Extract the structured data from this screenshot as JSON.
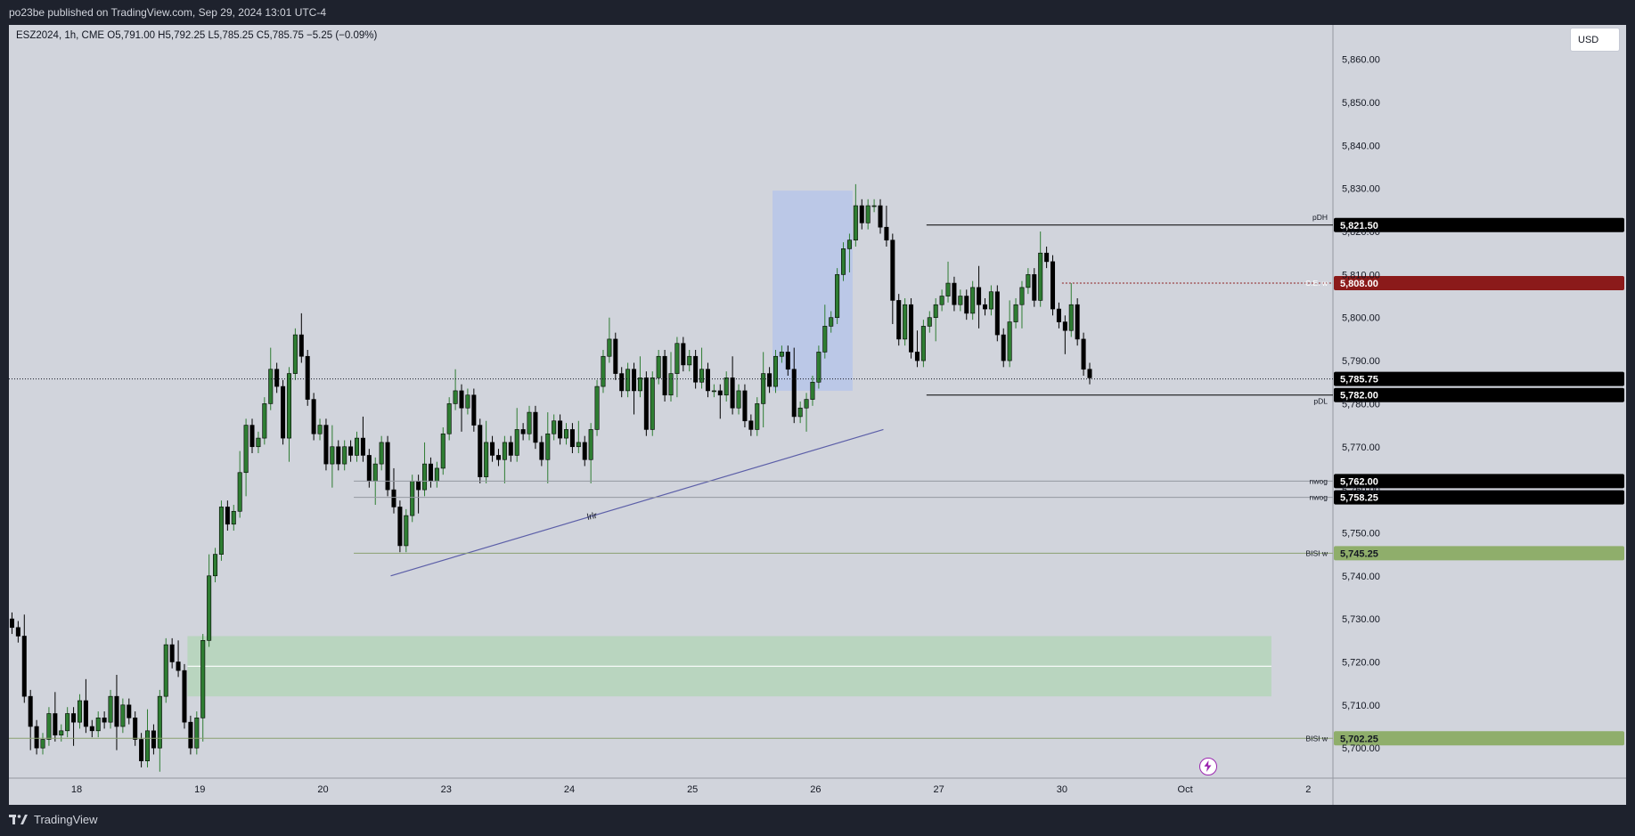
{
  "header": {
    "published_text": "po23be published on TradingView.com, Sep 29, 2024 13:01 UTC-4"
  },
  "legend": {
    "symbol_line": "ESZ2024, 1h, CME  O5,791.00  H5,792.25  L5,785.25  C5,785.75  −5.25 (−0.09%)"
  },
  "currency_button": "USD",
  "footer": {
    "brand": "TradingView"
  },
  "colors": {
    "background": "#d1d4dc",
    "up_body": "#2e7d32",
    "down_body": "#000000",
    "wick": "#2e7d32",
    "zone_blue": "#aabdf0",
    "zone_green": "#a5d6a7",
    "trendline": "#5c5fa8",
    "ce_marker": "#8b1a1a",
    "bisi_tag": "#8fae6b"
  },
  "chart_data": {
    "type": "candlestick",
    "symbol": "ESZ2024",
    "interval": "1h",
    "exchange": "CME",
    "ohlc": {
      "open": 5791.0,
      "high": 5792.25,
      "low": 5785.25,
      "close": 5785.75,
      "change": -5.25,
      "change_pct": -0.09
    },
    "y_axis": {
      "ylim": [
        5693,
        5868
      ],
      "ticks": [
        5700,
        5710,
        5720,
        5730,
        5740,
        5750,
        5760,
        5770,
        5780,
        5790,
        5800,
        5810,
        5820,
        5830,
        5840,
        5850,
        5860
      ],
      "tick_labels": [
        "5,700.00",
        "5,710.00",
        "5,720.00",
        "5,730.00",
        "5,740.00",
        "5,750.00",
        "5,760.00",
        "5,770.00",
        "5,780.00",
        "5,790.00",
        "5,800.00",
        "5,810.00",
        "5,820.00",
        "5,830.00",
        "5,840.00",
        "5,850.00",
        "5,860.00"
      ]
    },
    "x_axis": {
      "xlim": [
        0,
        215
      ],
      "tick_labels": [
        "18",
        "19",
        "20",
        "23",
        "24",
        "25",
        "26",
        "27",
        "30",
        "Oct",
        "2"
      ],
      "tick_positions": [
        11,
        31,
        51,
        71,
        91,
        111,
        131,
        151,
        171,
        191,
        211
      ]
    },
    "candles_close": [
      5728,
      5726,
      5712,
      5705,
      5700,
      5702,
      5708,
      5703,
      5704,
      5708,
      5706,
      5711,
      5705,
      5704,
      5707,
      5706,
      5712,
      5705,
      5710,
      5707,
      5702,
      5697,
      5704,
      5700,
      5712,
      5724,
      5720,
      5718,
      5706,
      5700,
      5707,
      5725,
      5740,
      5745,
      5756,
      5752,
      5755,
      5764,
      5775,
      5770,
      5772,
      5780,
      5788,
      5784,
      5772,
      5787,
      5796,
      5791,
      5781,
      5773,
      5775,
      5766,
      5770,
      5766,
      5770,
      5768,
      5772,
      5768,
      5762,
      5766,
      5771,
      5760,
      5756,
      5747,
      5754,
      5762,
      5760,
      5766,
      5762,
      5765,
      5773,
      5780,
      5783,
      5779,
      5782,
      5775,
      5763,
      5771,
      5768,
      5767,
      5771,
      5768,
      5774,
      5773,
      5778,
      5771,
      5767,
      5773,
      5776,
      5772,
      5774,
      5770,
      5771,
      5767,
      5774,
      5784,
      5791,
      5795,
      5787,
      5783,
      5788,
      5783,
      5786,
      5774,
      5786,
      5791,
      5782,
      5787,
      5794,
      5789,
      5791,
      5785,
      5788,
      5783,
      5783,
      5782,
      5786,
      5779,
      5783,
      5776,
      5774,
      5780,
      5787,
      5784,
      5791,
      5792,
      5788,
      5777,
      5779,
      5781,
      5785,
      5792,
      5798,
      5800,
      5810,
      5816,
      5818,
      5826,
      5822,
      5826,
      5826,
      5821,
      5818,
      5804,
      5795,
      5803,
      5792,
      5790,
      5798,
      5800,
      5803,
      5805,
      5808,
      5803,
      5805,
      5801,
      5807,
      5803,
      5802,
      5806,
      5796,
      5790,
      5799,
      5803,
      5807,
      5810,
      5804,
      5815,
      5813,
      5802,
      5799,
      5797,
      5803,
      5795,
      5788,
      5786
    ],
    "levels": [
      {
        "label": "pDH",
        "price": 5821.5,
        "price_label": "5,821.50"
      },
      {
        "label": "C.E. w",
        "price": 5808.0,
        "price_label": "5,808.00"
      },
      {
        "label": "",
        "price": 5785.75,
        "price_label": "5,785.75",
        "note": "last price"
      },
      {
        "label": "pDL",
        "price": 5782.0,
        "price_label": "5,782.00"
      },
      {
        "label": "nwog",
        "price": 5762.0,
        "price_label": "5,762.00"
      },
      {
        "label": "nwog",
        "price": 5758.25,
        "price_label": "5,758.25"
      },
      {
        "label": "BISI w",
        "price": 5745.25,
        "price_label": "5,745.25"
      },
      {
        "label": "BISI w",
        "price": 5702.25,
        "price_label": "5,702.25"
      }
    ],
    "trendline": {
      "label": "lrlr",
      "from": {
        "x": 62,
        "price": 5740
      },
      "to": {
        "x": 142,
        "price": 5774
      }
    },
    "zones": [
      {
        "name": "blue-box",
        "x_from": 124,
        "x_to": 137,
        "price_from": 5783,
        "price_to": 5829.5
      },
      {
        "name": "green-box",
        "x_from": 29,
        "x_to": 205,
        "price_from": 5712,
        "price_to": 5726
      }
    ]
  }
}
